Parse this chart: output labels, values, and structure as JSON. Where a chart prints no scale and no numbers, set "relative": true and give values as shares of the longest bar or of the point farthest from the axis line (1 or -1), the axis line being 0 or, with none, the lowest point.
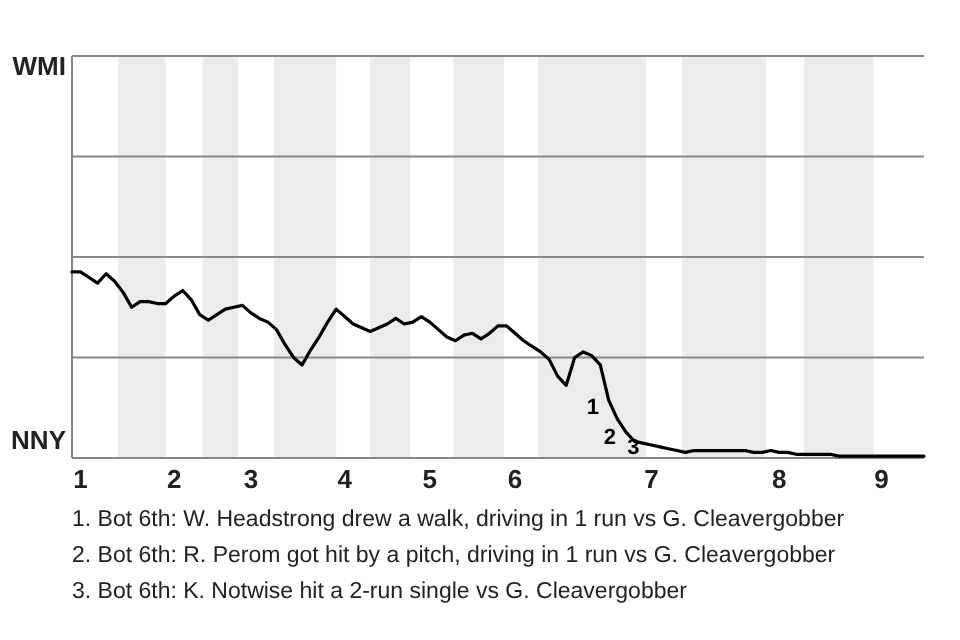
{
  "chart_data": {
    "type": "line",
    "relative": true,
    "marker": "none",
    "line_style": "solid",
    "categories": [
      null,
      "1",
      null,
      null,
      null,
      null,
      null,
      null,
      null,
      null,
      null,
      null,
      "2",
      null,
      null,
      null,
      null,
      null,
      null,
      null,
      null,
      "3",
      null,
      null,
      null,
      null,
      null,
      null,
      null,
      null,
      null,
      null,
      "4",
      null,
      null,
      null,
      null,
      null,
      null,
      null,
      null,
      null,
      "5",
      null,
      null,
      null,
      null,
      null,
      null,
      null,
      null,
      null,
      "6",
      null,
      null,
      null,
      null,
      null,
      null,
      null,
      null,
      null,
      null,
      null,
      null,
      null,
      null,
      null,
      "7",
      null,
      null,
      null,
      null,
      null,
      null,
      null,
      null,
      null,
      null,
      null,
      null,
      null,
      null,
      "8",
      null,
      null,
      null,
      null,
      null,
      null,
      null,
      null,
      null,
      null,
      null,
      "9",
      null,
      null,
      null,
      null,
      null
    ],
    "series": [
      {
        "color": "#000000",
        "values": [
          1,
          1,
          0.97,
          0.94,
          0.99,
          0.95,
          0.89,
          0.81,
          0.84,
          0.84,
          0.83,
          0.83,
          0.87,
          0.9,
          0.85,
          0.77,
          0.74,
          0.77,
          0.8,
          0.81,
          0.82,
          0.78,
          0.75,
          0.73,
          0.69,
          0.61,
          0.54,
          0.5,
          0.58,
          0.65,
          0.73,
          0.8,
          0.76,
          0.72,
          0.7,
          0.68,
          0.7,
          0.72,
          0.75,
          0.72,
          0.73,
          0.76,
          0.73,
          0.69,
          0.65,
          0.63,
          0.66,
          0.67,
          0.64,
          0.67,
          0.71,
          0.71,
          0.67,
          0.63,
          0.6,
          0.57,
          0.53,
          0.44,
          0.39,
          0.54,
          0.57,
          0.55,
          0.5,
          0.31,
          0.21,
          0.14,
          0.09,
          0.08,
          0.07,
          0.06,
          0.05,
          0.04,
          0.03,
          0.04,
          0.04,
          0.04,
          0.04,
          0.04,
          0.04,
          0.04,
          0.03,
          0.03,
          0.04,
          0.03,
          0.03,
          0.02,
          0.02,
          0.02,
          0.02,
          0.02,
          0.01,
          0.01,
          0.01,
          0.01,
          0.01,
          0.01,
          0.01,
          0.01,
          0.01,
          0.01,
          0.01
        ]
      }
    ],
    "ref_lines": [
      {
        "axis": "y",
        "value": 0.54,
        "color": "#888888"
      },
      {
        "axis": "y",
        "value": 1.08,
        "color": "#888888"
      },
      {
        "axis": "y",
        "value": 1.62,
        "color": "#888888"
      },
      {
        "axis": "y",
        "value": 2.16,
        "color": "#888888"
      }
    ],
    "annotations": [
      "WMI",
      "NNY",
      "1",
      "2",
      "3",
      "1. Bot 6th: W. Headstrong drew a walk, driving in 1 run vs G. Cleavergobber",
      "2. Bot 6th: R. Perom got hit by a pitch, driving in 1 run vs G. Cleavergobber",
      "3. Bot 6th: K. Notwise hit a 2-run single vs G. Cleavergobber"
    ]
  }
}
